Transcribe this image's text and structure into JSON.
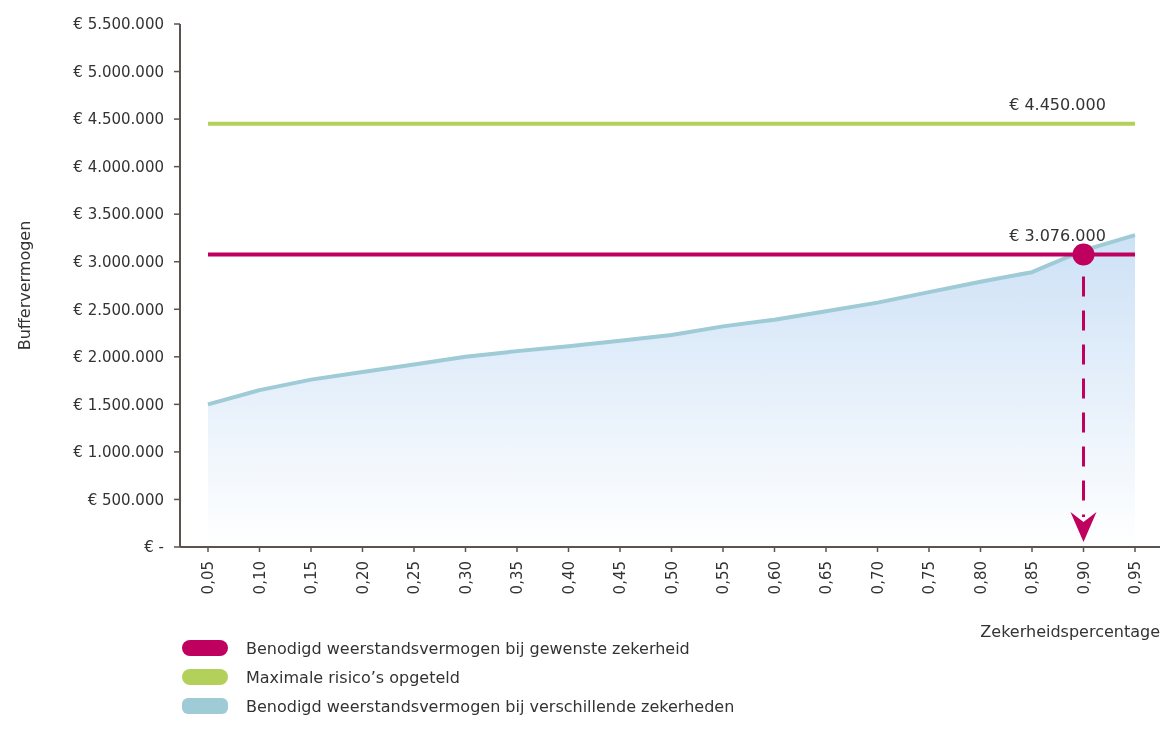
{
  "chart_data": {
    "type": "line",
    "xlabel": "Zekerheidspercentage",
    "ylabel": "Buffervermogen",
    "categories": [
      "0,05",
      "0,10",
      "0,15",
      "0,20",
      "0,25",
      "0,30",
      "0,35",
      "0,40",
      "0,45",
      "0,50",
      "0,55",
      "0,60",
      "0,65",
      "0,70",
      "0,75",
      "0,80",
      "0,85",
      "0,90",
      "0,95"
    ],
    "series": [
      {
        "name": "Benodigd weerstandsvermogen bij gewenste zekerheid",
        "color": "#c0005f",
        "values": [
          3076000,
          3076000,
          3076000,
          3076000,
          3076000,
          3076000,
          3076000,
          3076000,
          3076000,
          3076000,
          3076000,
          3076000,
          3076000,
          3076000,
          3076000,
          3076000,
          3076000,
          3076000,
          3076000
        ]
      },
      {
        "name": "Maximale risico’s opgeteld",
        "color": "#b3d15a",
        "values": [
          4450000,
          4450000,
          4450000,
          4450000,
          4450000,
          4450000,
          4450000,
          4450000,
          4450000,
          4450000,
          4450000,
          4450000,
          4450000,
          4450000,
          4450000,
          4450000,
          4450000,
          4450000,
          4450000
        ]
      },
      {
        "name": "Benodigd weerstandsvermogen bij verschillende zekerheden",
        "type": "area",
        "color": "#9ecbd6",
        "values": [
          1500000,
          1650000,
          1760000,
          1840000,
          1920000,
          2000000,
          2060000,
          2110000,
          2170000,
          2230000,
          2320000,
          2390000,
          2480000,
          2570000,
          2680000,
          2790000,
          2890000,
          3120000,
          3280000
        ]
      }
    ],
    "annotations": [
      {
        "text": "€ 4.450.000",
        "x": "0,90",
        "y": 4450000
      },
      {
        "text": "€ 3.076.000",
        "x": "0,90",
        "y": 3076000
      }
    ],
    "ylim": [
      0,
      5500000
    ],
    "yticks": [
      {
        "value": 0,
        "label": "€ -"
      },
      {
        "value": 500000,
        "label": "€ 500.000"
      },
      {
        "value": 1000000,
        "label": "€ 1.000.000"
      },
      {
        "value": 1500000,
        "label": "€ 1.500.000"
      },
      {
        "value": 2000000,
        "label": "€ 2.000.000"
      },
      {
        "value": 2500000,
        "label": "€ 2.500.000"
      },
      {
        "value": 3000000,
        "label": "€ 3.000.000"
      },
      {
        "value": 3500000,
        "label": "€ 3.500.000"
      },
      {
        "value": 4000000,
        "label": "€ 4.000.000"
      },
      {
        "value": 4500000,
        "label": "€ 4.500.000"
      },
      {
        "value": 5000000,
        "label": "€ 5.000.000"
      },
      {
        "value": 5500000,
        "label": "€ 5.500.000"
      }
    ],
    "legend": "bottom"
  }
}
